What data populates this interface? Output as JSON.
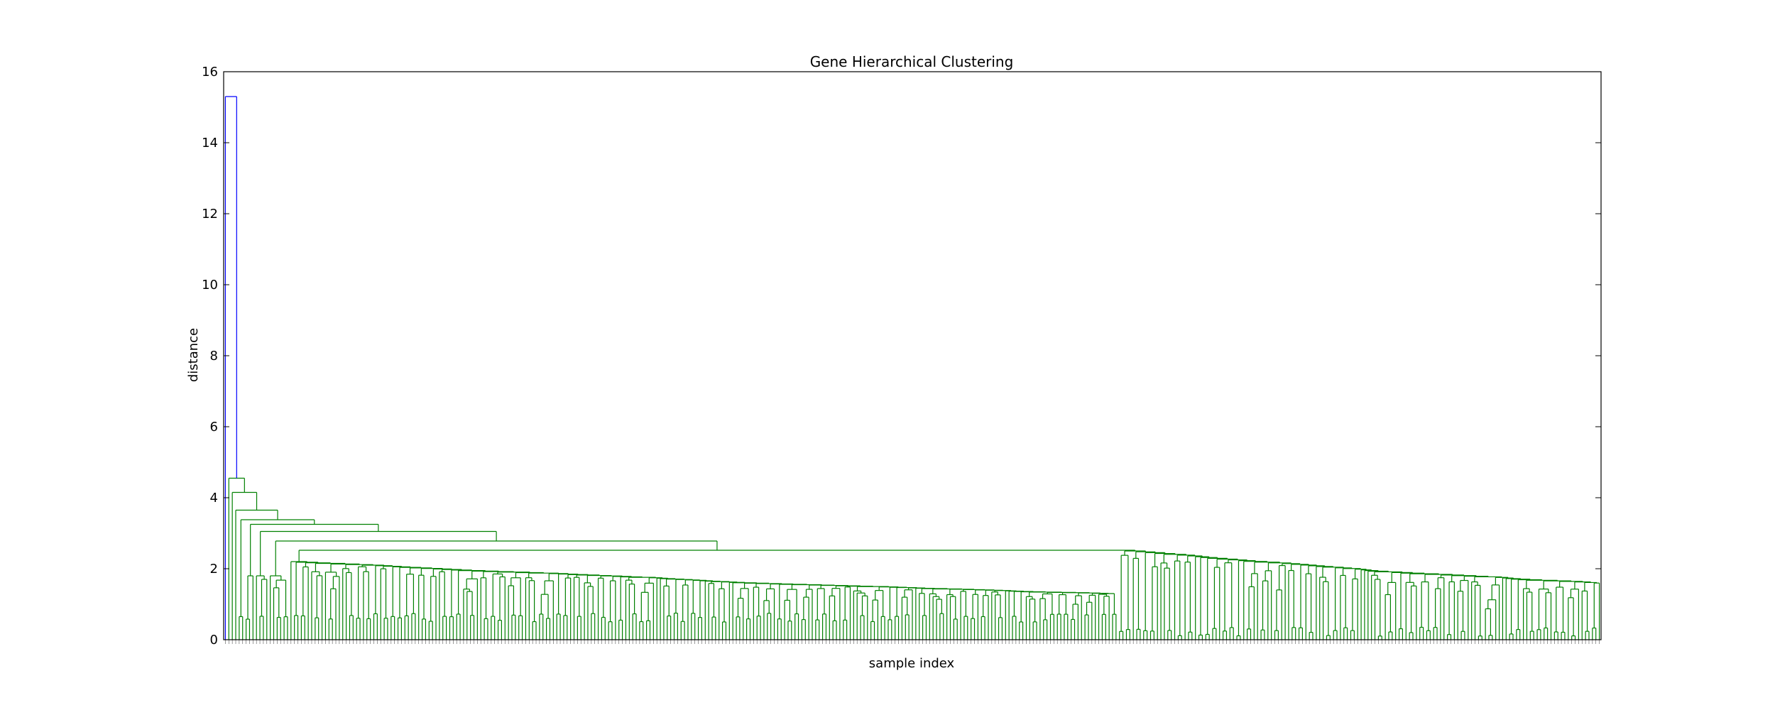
{
  "chart_data": {
    "type": "dendrogram",
    "title": "Gene Hierarchical Clustering",
    "xlabel": "sample index",
    "ylabel": "distance",
    "ylim": [
      0,
      16
    ],
    "yticks": [
      0,
      2,
      4,
      6,
      8,
      10,
      12,
      14,
      16
    ],
    "leaf_count": 400,
    "root_height": 15.3,
    "colors": {
      "root": "#0000ff",
      "clusters": "#008000"
    },
    "top_merges": [
      {
        "height": 15.3,
        "left": "leaf 1",
        "right": "main cluster"
      },
      {
        "height": 4.55,
        "left": "leaf 2",
        "right": "rest"
      },
      {
        "height": 4.15,
        "left": "leaf 3",
        "right": "rest"
      },
      {
        "height": 3.65,
        "left": "leaf 4",
        "right": "rest"
      },
      {
        "height": 3.38,
        "left": "leaf 5",
        "right": "rest"
      },
      {
        "height": 3.25,
        "left": "group",
        "right": "rest"
      },
      {
        "height": 3.05,
        "left": "group",
        "right": "rest"
      },
      {
        "height": 2.78,
        "left": "group",
        "right": "rest"
      },
      {
        "height": 2.52,
        "left": "cluster A",
        "right": "cluster B"
      }
    ],
    "cluster_A": {
      "leaves": 240,
      "top_height": 2.2,
      "min_height": 0.5
    },
    "cluster_B": {
      "leaves": 140,
      "top_height": 2.5,
      "min_height": 0.1
    },
    "grid": false,
    "legend": "none"
  }
}
